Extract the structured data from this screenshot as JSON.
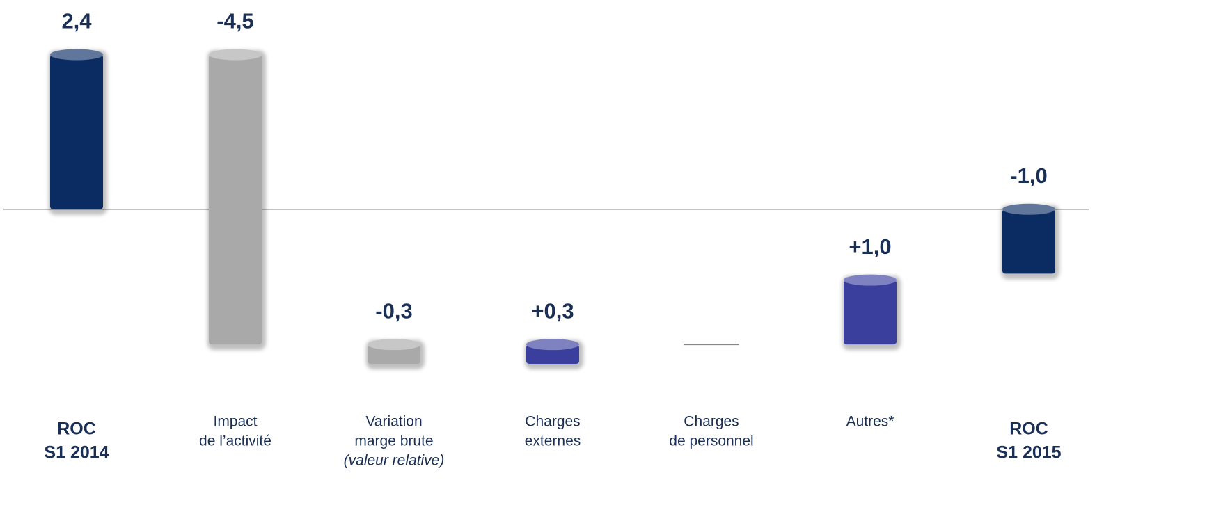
{
  "chart_data": {
    "type": "waterfall",
    "categories": [
      [
        "ROC",
        "S1 2014"
      ],
      [
        "Impact",
        "de l’activité"
      ],
      [
        "Variation",
        "marge brute",
        "(valeur relative)"
      ],
      [
        "Charges",
        "externes"
      ],
      [
        "Charges",
        "de personnel"
      ],
      [
        "Autres*"
      ],
      [
        "ROC",
        "S1 2015"
      ]
    ],
    "values": [
      2.4,
      -4.5,
      -0.3,
      0.3,
      0,
      1.0,
      -1.0
    ],
    "value_labels": [
      "2,4",
      "-4,5",
      "-0,3",
      "+0,3",
      null,
      "+1,0",
      "-1,0"
    ],
    "measure": [
      "absolute",
      "relative",
      "relative",
      "relative",
      "relative",
      "relative",
      "absolute"
    ],
    "colors": [
      "#0b2c63",
      "#a9a9a9",
      "#a9a9a9",
      "#3a3f9e",
      "#a9a9a9",
      "#3a3f9e",
      "#0b2c63"
    ],
    "ylim": [
      -2.8,
      2.6
    ]
  }
}
